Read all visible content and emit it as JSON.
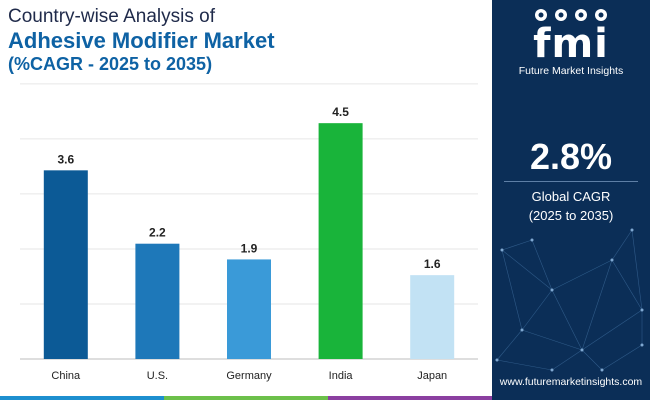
{
  "header": {
    "line1": "Country-wise Analysis of",
    "line2": "Adhesive Modifier Market",
    "line3": "(%CAGR - 2025 to 2035)"
  },
  "chart_data": {
    "type": "bar",
    "categories": [
      "China",
      "U.S.",
      "Germany",
      "India",
      "Japan"
    ],
    "values": [
      3.6,
      2.2,
      1.9,
      4.5,
      1.6
    ],
    "value_labels": [
      "3.6",
      "2.2",
      "1.9",
      "4.5",
      "1.6"
    ],
    "colors": [
      "#0c5a96",
      "#1e78b9",
      "#3a9ad8",
      "#19b43a",
      "#c2e2f4"
    ],
    "ylim": [
      0,
      5.4
    ],
    "gridlines": [
      1.05,
      2.1,
      3.15,
      4.2,
      5.25
    ],
    "title": "Country-wise Analysis of Adhesive Modifier Market",
    "xlabel": "",
    "ylabel": ""
  },
  "sidebar": {
    "logo_text": "fmi",
    "company_name": "Future Market Insights",
    "cagr_value": "2.8%",
    "cagr_label_line1": "Global CAGR",
    "cagr_label_line2": "(2025 to 2035)",
    "website": "www.futuremarketinsights.com",
    "background_color": "#0b2e57"
  },
  "footer": {
    "stripe_colors": [
      "#1d8fcf",
      "#6cc04a",
      "#8b3fa0"
    ]
  }
}
